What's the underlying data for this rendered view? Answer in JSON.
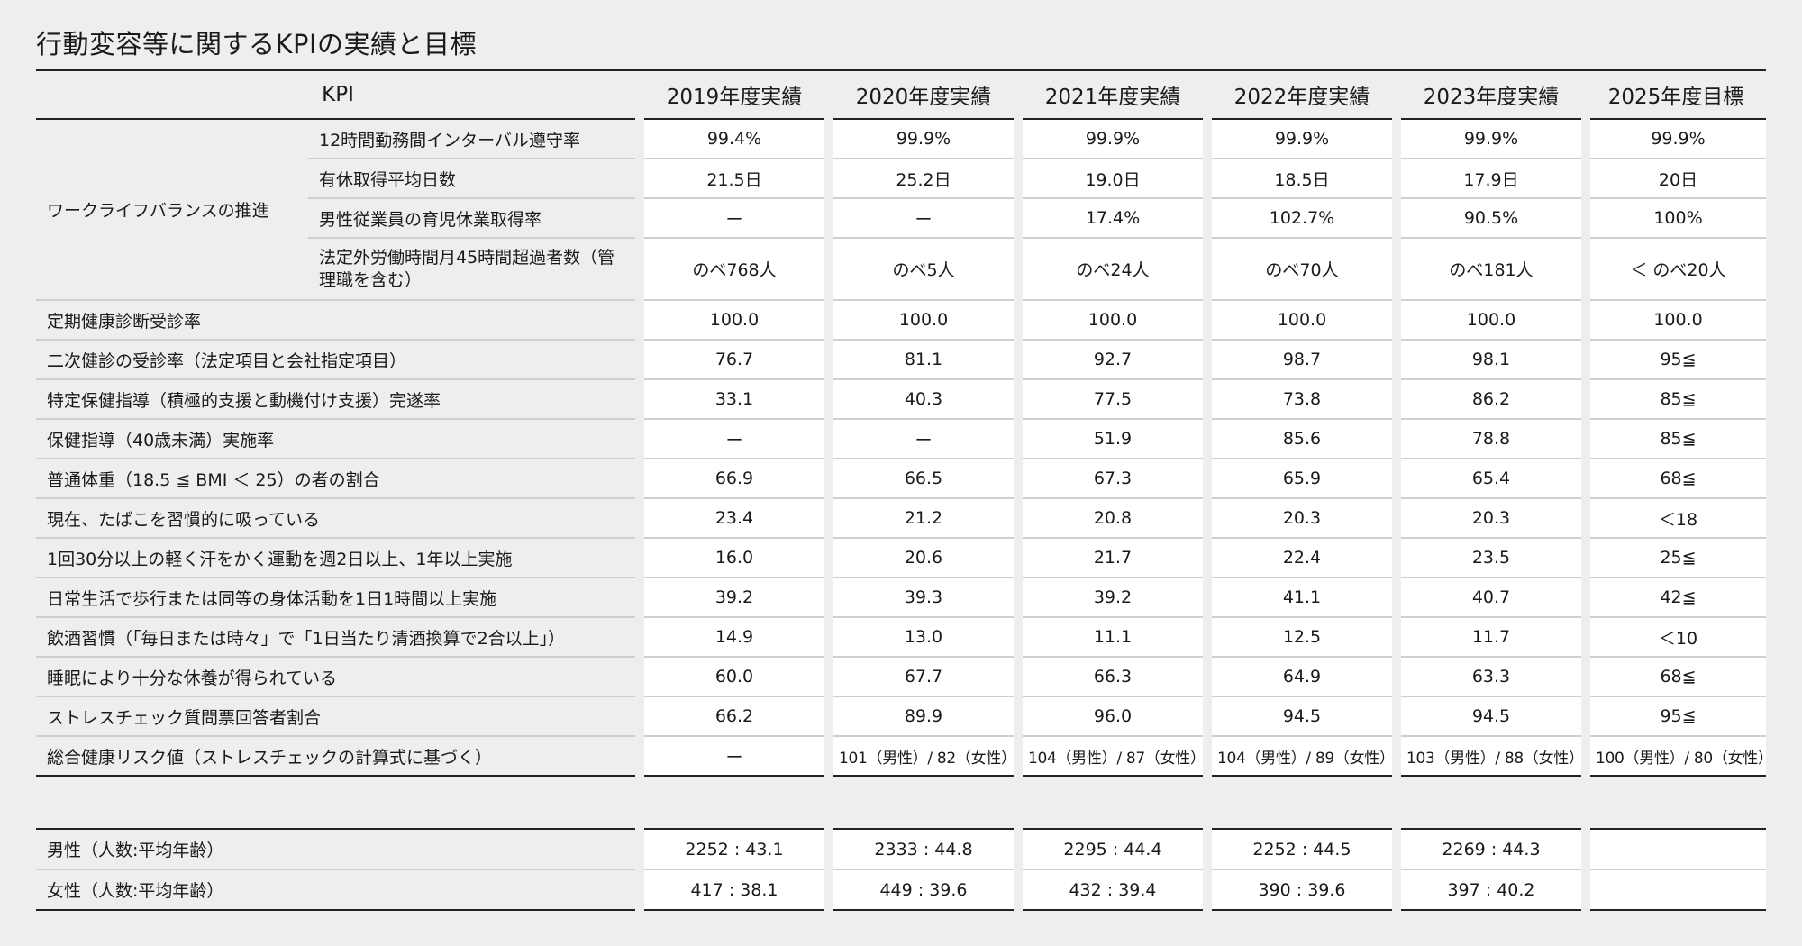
{
  "title": "行動変容等に関するKPIの実績と目標",
  "columns": {
    "kpi": "KPI",
    "years": [
      "2019年度実績",
      "2020年度実績",
      "2021年度実績",
      "2022年度実績",
      "2023年度実績",
      "2025年度目標"
    ]
  },
  "wlb": {
    "group_label": "ワークライフバランスの推進",
    "rows": [
      {
        "label": "12時間勤務間インターバル遵守率",
        "values": [
          "99.4%",
          "99.9%",
          "99.9%",
          "99.9%",
          "99.9%",
          "99.9%"
        ]
      },
      {
        "label": "有休取得平均日数",
        "values": [
          "21.5日",
          "25.2日",
          "19.0日",
          "18.5日",
          "17.9日",
          "20日"
        ]
      },
      {
        "label": "男性従業員の育児休業取得率",
        "values": [
          "ー",
          "ー",
          "17.4%",
          "102.7%",
          "90.5%",
          "100%"
        ]
      },
      {
        "label": "法定外労働時間月45時間超過者数（管理職を含む）",
        "values": [
          "のべ768人",
          "のべ5人",
          "のべ24人",
          "のべ70人",
          "のべ181人",
          "＜ のべ20人"
        ]
      }
    ]
  },
  "health_rows": [
    {
      "label": "定期健康診断受診率",
      "values": [
        "100.0",
        "100.0",
        "100.0",
        "100.0",
        "100.0",
        "100.0"
      ]
    },
    {
      "label": "二次健診の受診率（法定項目と会社指定項目）",
      "values": [
        "76.7",
        "81.1",
        "92.7",
        "98.7",
        "98.1",
        "95≦"
      ]
    },
    {
      "label": "特定保健指導（積極的支援と動機付け支援）完遂率",
      "values": [
        "33.1",
        "40.3",
        "77.5",
        "73.8",
        "86.2",
        "85≦"
      ]
    },
    {
      "label": "保健指導（40歳未満）実施率",
      "values": [
        "ー",
        "ー",
        "51.9",
        "85.6",
        "78.8",
        "85≦"
      ]
    },
    {
      "label": "普通体重（18.5 ≦ BMI ＜ 25）の者の割合",
      "values": [
        "66.9",
        "66.5",
        "67.3",
        "65.9",
        "65.4",
        "68≦"
      ]
    },
    {
      "label": "現在、たばこを習慣的に吸っている",
      "values": [
        "23.4",
        "21.2",
        "20.8",
        "20.3",
        "20.3",
        "＜18"
      ]
    },
    {
      "label": "1回30分以上の軽く汗をかく運動を週2日以上、1年以上実施",
      "values": [
        "16.0",
        "20.6",
        "21.7",
        "22.4",
        "23.5",
        "25≦"
      ]
    },
    {
      "label": "日常生活で歩行または同等の身体活動を1日1時間以上実施",
      "values": [
        "39.2",
        "39.3",
        "39.2",
        "41.1",
        "40.7",
        "42≦"
      ]
    },
    {
      "label": "飲酒習慣（「毎日または時々」で「1日当たり清酒換算で2合以上」）",
      "values": [
        "14.9",
        "13.0",
        "11.1",
        "12.5",
        "11.7",
        "＜10"
      ]
    },
    {
      "label": "睡眠により十分な休養が得られている",
      "values": [
        "60.0",
        "67.7",
        "66.3",
        "64.9",
        "63.3",
        "68≦"
      ]
    },
    {
      "label": "ストレスチェック質問票回答者割合",
      "values": [
        "66.2",
        "89.9",
        "96.0",
        "94.5",
        "94.5",
        "95≦"
      ]
    },
    {
      "label": "総合健康リスク値（ストレスチェックの計算式に基づく）",
      "values": [
        "ー",
        "101（男性）/ 82（女性）",
        "104（男性）/ 87（女性）",
        "104（男性）/ 89（女性）",
        "103（男性）/ 88（女性）",
        "100（男性）/ 80（女性）"
      ]
    }
  ],
  "population": [
    {
      "label": "男性（人数:平均年齢）",
      "values": [
        "2252 : 43.1",
        "2333 : 44.8",
        "2295 : 44.4",
        "2252 : 44.5",
        "2269 : 44.3",
        ""
      ]
    },
    {
      "label": "女性（人数:平均年齢）",
      "values": [
        "417 : 38.1",
        "449 : 39.6",
        "432 : 39.4",
        "390 : 39.6",
        "397 : 40.2",
        ""
      ]
    }
  ]
}
